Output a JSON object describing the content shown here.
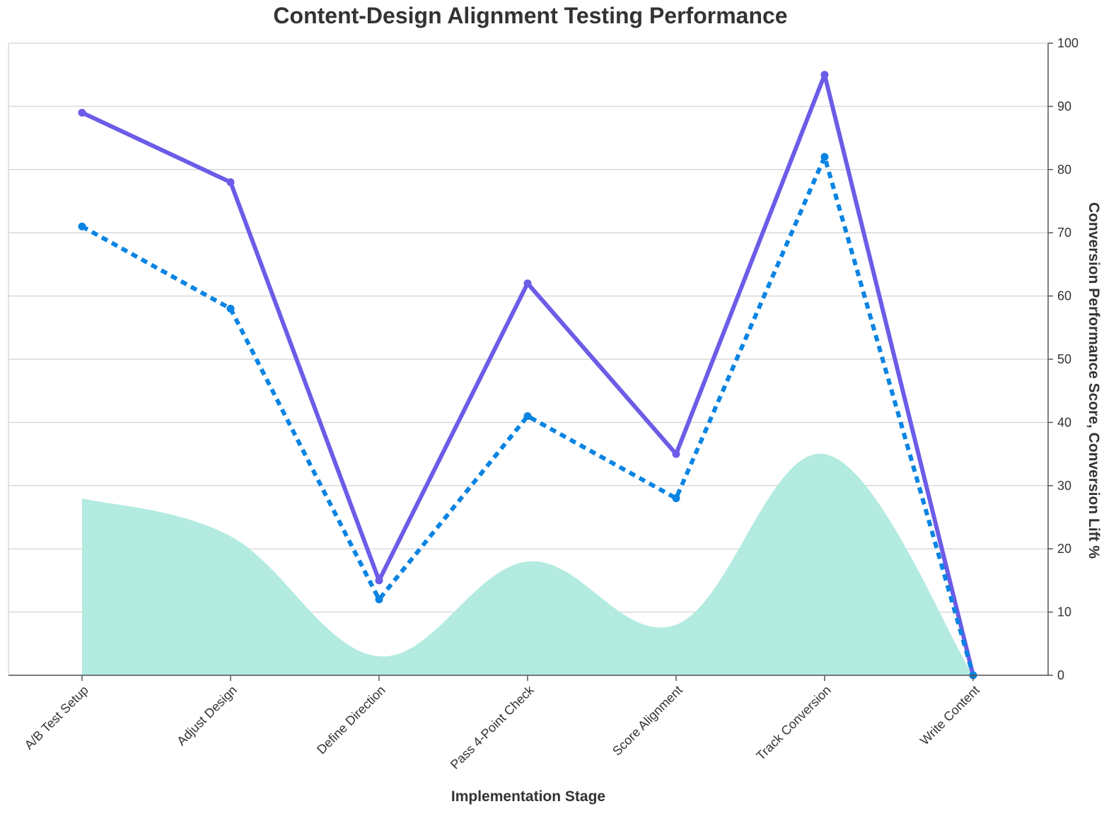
{
  "chart_data": {
    "type": "line",
    "title": "Content-Design Alignment Testing Performance",
    "xlabel": "Implementation Stage",
    "ylabel": "Conversion Performance Score, Conversion Lift %",
    "ylim": [
      0,
      100
    ],
    "yticks": [
      "0",
      "10",
      "20",
      "30",
      "40",
      "50",
      "60",
      "70",
      "80",
      "90",
      "100"
    ],
    "categories": [
      "A/B Test Setup",
      "Adjust Design",
      "Define Direction",
      "Pass 4-Point Check",
      "Score Alignment",
      "Track Conversion",
      "Write Content"
    ],
    "grid": true,
    "legend": "none",
    "series": [
      {
        "style": "line",
        "color": "#6c5ce7",
        "values": [
          89,
          78,
          15,
          62,
          35,
          95,
          0
        ]
      },
      {
        "style": "dashed-line",
        "color": "#0984e3",
        "values": [
          71,
          58,
          12,
          41,
          28,
          82,
          0
        ]
      },
      {
        "style": "area",
        "color": "#b3ebe0",
        "values": [
          28,
          22,
          3,
          18,
          8,
          35,
          0
        ]
      }
    ]
  }
}
